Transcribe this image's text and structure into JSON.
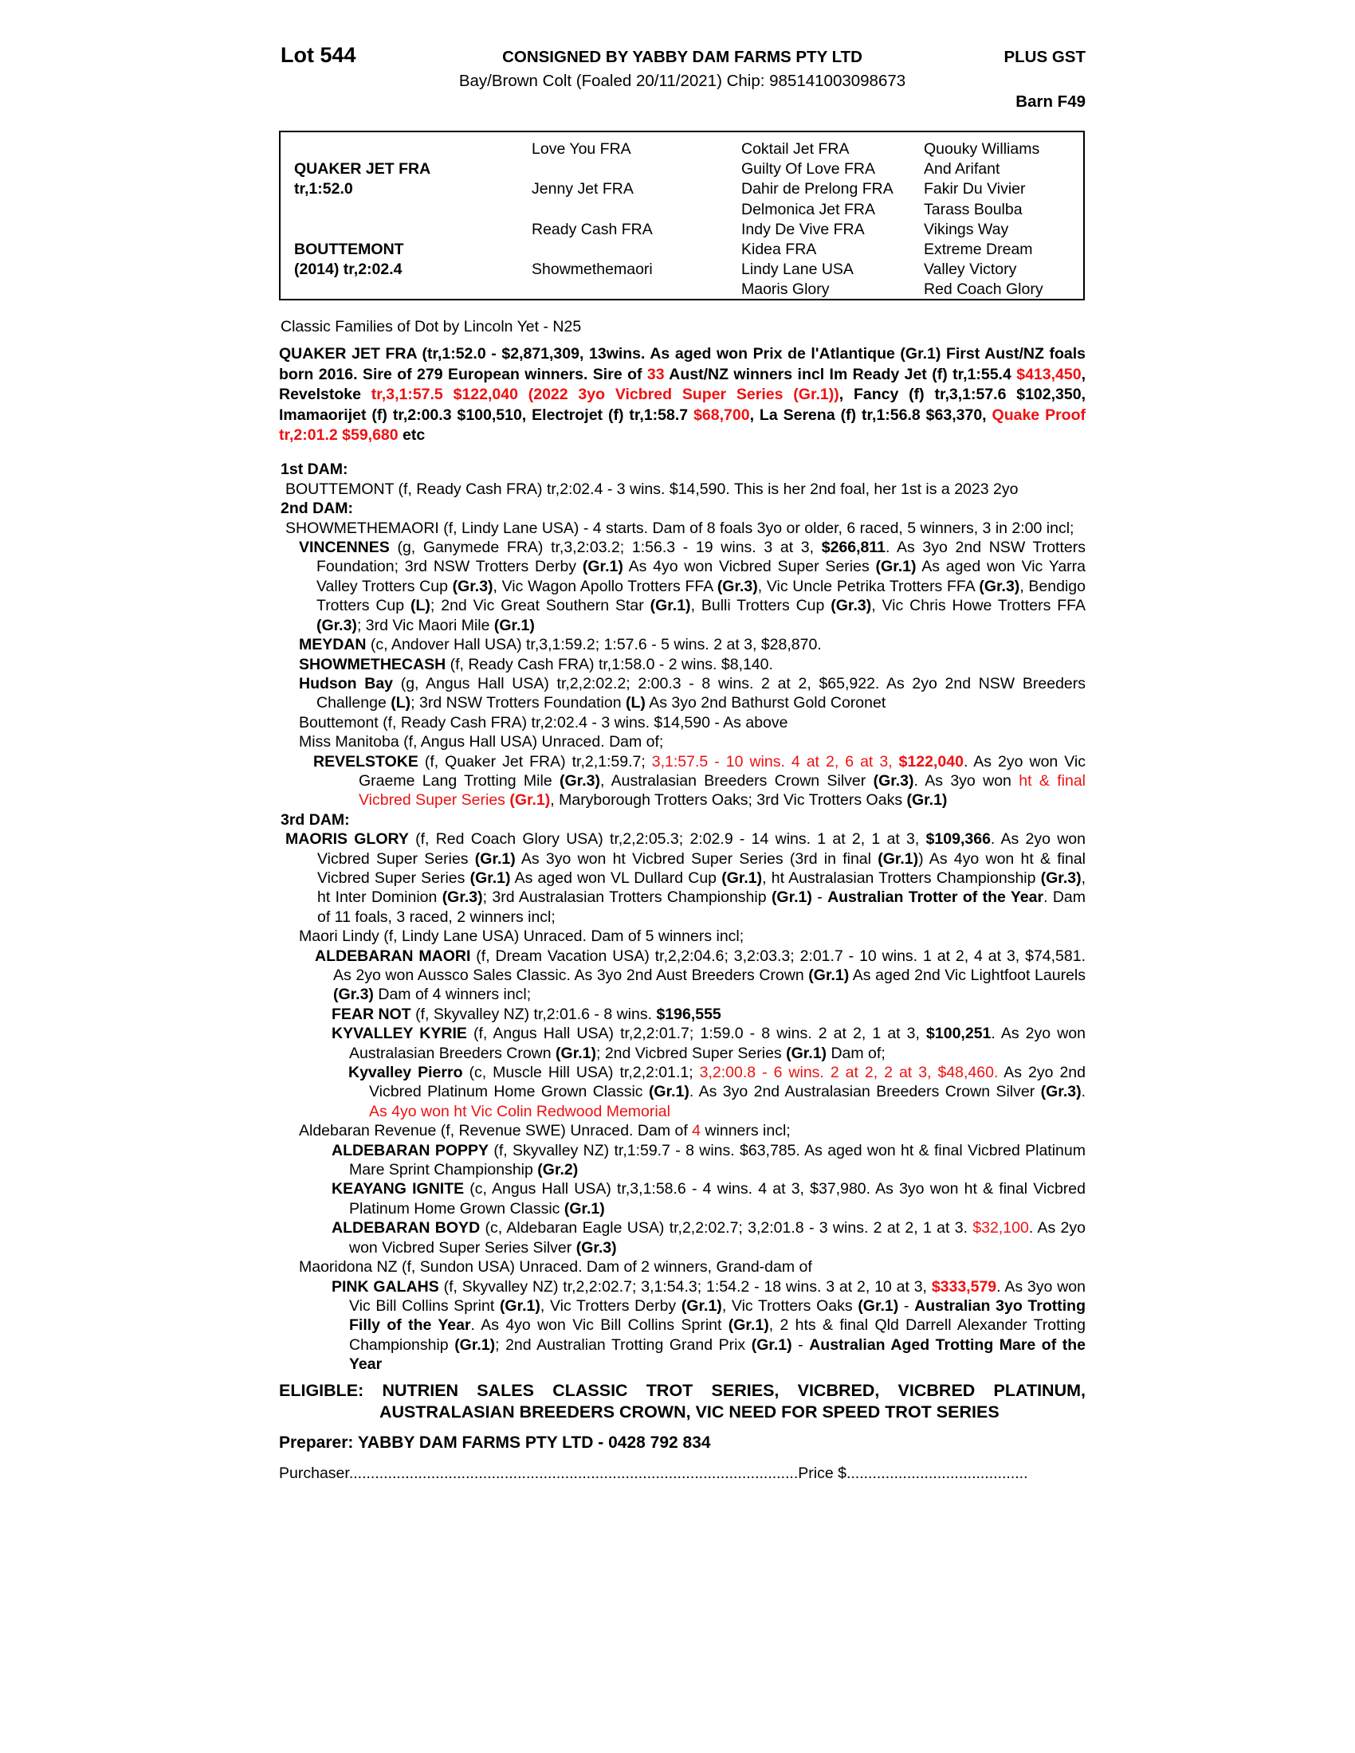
{
  "colors": {
    "red": "#ee1111"
  },
  "header": {
    "lot": "Lot 544",
    "consignor": "CONSIGNED BY YABBY DAM FARMS PTY LTD",
    "gst": "PLUS GST",
    "description": "Bay/Brown Colt (Foaled 20/11/2021) Chip: 985141003098673",
    "barn": "Barn F49"
  },
  "pedigree_table": {
    "rows": [
      {
        "c1": "",
        "c2": "Love You FRA",
        "c3": "Coktail Jet FRA",
        "c4": "Quouky Williams"
      },
      {
        "c1": "QUAKER JET FRA",
        "c2": "",
        "c3": "Guilty Of Love FRA",
        "c4": "And Arifant"
      },
      {
        "c1": "tr,1:52.0",
        "c2": "Jenny Jet FRA",
        "c3": "Dahir de Prelong FRA",
        "c4": "Fakir Du Vivier"
      },
      {
        "c1": "",
        "c2": "",
        "c3": "Delmonica Jet FRA",
        "c4": "Tarass Boulba"
      },
      {
        "c1": "",
        "c2": "Ready Cash FRA",
        "c3": "Indy De Vive FRA",
        "c4": "Vikings Way"
      },
      {
        "c1": "BOUTTEMONT",
        "c2": "",
        "c3": "Kidea FRA",
        "c4": "Extreme Dream"
      },
      {
        "c1": "(2014) tr,2:02.4",
        "c2": "Showmethemaori",
        "c3": "Lindy Lane USA",
        "c4": "Valley Victory"
      },
      {
        "c1": "",
        "c2": "",
        "c3": "Maoris Glory",
        "c4": "Red Coach Glory"
      }
    ]
  },
  "family_note": "Classic Families of Dot by Lincoln Yet - N25",
  "sire_paragraph": [
    {
      "t": "QUAKER JET FRA (tr,1:52.0 - $2,871,309, 13wins. As aged won Prix de l'Atlantique (Gr.1) First Aust/NZ foals born 2016. Sire of 279 European winners. Sire of ",
      "s": "b"
    },
    {
      "t": "33",
      "s": "br"
    },
    {
      "t": " Aust/NZ winners incl Im Ready Jet (f) tr,1:55.4 ",
      "s": "b"
    },
    {
      "t": "$413,450",
      "s": "br"
    },
    {
      "t": ", Revelstoke ",
      "s": "b"
    },
    {
      "t": "tr,3,1:57.5 $122,040 (2022 3yo Vicbred Super Series (Gr.1))",
      "s": "br"
    },
    {
      "t": ", Fancy (f) tr,3,1:57.6 $102,350, Imamaorijet (f) tr,2:00.3 $100,510, Electrojet (f) tr,1:58.7 ",
      "s": "b"
    },
    {
      "t": "$68,700",
      "s": "br"
    },
    {
      "t": ",  La Serena (f) tr,1:56.8 $63,370, ",
      "s": "b"
    },
    {
      "t": "Quake Proof tr,2:01.2 $59,680",
      "s": "br"
    },
    {
      "t": " etc",
      "s": "b"
    }
  ],
  "dam_blocks": [
    {
      "kind": "label",
      "text": "1st DAM:"
    },
    {
      "kind": "para",
      "indent": "0",
      "segs": [
        {
          "t": "BOUTTEMONT (f, Ready Cash FRA) tr,2:02.4 - 3 wins. $14,590. This is her 2nd foal, her 1st is a 2023 2yo",
          "s": ""
        }
      ]
    },
    {
      "kind": "label",
      "text": "2nd DAM:"
    },
    {
      "kind": "para",
      "indent": "0",
      "segs": [
        {
          "t": "SHOWMETHEMAORI (f, Lindy Lane USA) - 4 starts. Dam of 8 foals 3yo or older, 6 raced, 5 winners, 3 in 2:00 incl;",
          "s": ""
        }
      ]
    },
    {
      "kind": "para",
      "indent": "1",
      "segs": [
        {
          "t": "VINCENNES",
          "s": "b"
        },
        {
          "t": " (g, Ganymede FRA) tr,3,2:03.2; 1:56.3 - 19 wins. 3 at 3, ",
          "s": ""
        },
        {
          "t": "$266,811",
          "s": "b"
        },
        {
          "t": ". As 3yo 2nd NSW Trotters Foundation; 3rd NSW Trotters Derby ",
          "s": ""
        },
        {
          "t": "(Gr.1)",
          "s": "b"
        },
        {
          "t": " As 4yo won Vicbred Super Series ",
          "s": ""
        },
        {
          "t": "(Gr.1)",
          "s": "b"
        },
        {
          "t": " As aged won Vic Yarra Valley Trotters Cup ",
          "s": ""
        },
        {
          "t": "(Gr.3)",
          "s": "b"
        },
        {
          "t": ", Vic Wagon Apollo Trotters FFA ",
          "s": ""
        },
        {
          "t": "(Gr.3)",
          "s": "b"
        },
        {
          "t": ", Vic Uncle Petrika Trotters FFA ",
          "s": ""
        },
        {
          "t": "(Gr.3)",
          "s": "b"
        },
        {
          "t": ", Bendigo Trotters Cup ",
          "s": ""
        },
        {
          "t": "(L)",
          "s": "b"
        },
        {
          "t": "; 2nd Vic Great Southern Star ",
          "s": ""
        },
        {
          "t": "(Gr.1)",
          "s": "b"
        },
        {
          "t": ", Bulli Trotters Cup ",
          "s": ""
        },
        {
          "t": "(Gr.3)",
          "s": "b"
        },
        {
          "t": ", Vic Chris Howe Trotters FFA ",
          "s": ""
        },
        {
          "t": "(Gr.3)",
          "s": "b"
        },
        {
          "t": "; 3rd Vic Maori Mile ",
          "s": ""
        },
        {
          "t": "(Gr.1)",
          "s": "b"
        }
      ]
    },
    {
      "kind": "para",
      "indent": "1",
      "segs": [
        {
          "t": "MEYDAN",
          "s": "b"
        },
        {
          "t": " (c, Andover Hall USA) tr,3,1:59.2; 1:57.6 - 5 wins. 2 at 3, $28,870.",
          "s": ""
        }
      ]
    },
    {
      "kind": "para",
      "indent": "1",
      "segs": [
        {
          "t": "SHOWMETHECASH",
          "s": "b"
        },
        {
          "t": " (f, Ready Cash FRA) tr,1:58.0 - 2 wins. $8,140.",
          "s": ""
        }
      ]
    },
    {
      "kind": "para",
      "indent": "1",
      "segs": [
        {
          "t": "Hudson Bay",
          "s": "b"
        },
        {
          "t": " (g, Angus Hall USA) tr,2,2:02.2; 2:00.3 - 8 wins. 2 at 2, $65,922. As 2yo 2nd NSW Breeders Challenge ",
          "s": ""
        },
        {
          "t": "(L)",
          "s": "b"
        },
        {
          "t": "; 3rd NSW Trotters Foundation ",
          "s": ""
        },
        {
          "t": "(L)",
          "s": "b"
        },
        {
          "t": " As 3yo 2nd Bathurst Gold Coronet",
          "s": ""
        }
      ]
    },
    {
      "kind": "para",
      "indent": "1",
      "segs": [
        {
          "t": "Bouttemont (f, Ready Cash FRA) tr,2:02.4 - 3 wins. $14,590 - As above",
          "s": ""
        }
      ]
    },
    {
      "kind": "para",
      "indent": "1",
      "segs": [
        {
          "t": "Miss Manitoba (f, Angus Hall USA) Unraced. Dam of;",
          "s": ""
        }
      ]
    },
    {
      "kind": "para",
      "indent": "2r",
      "segs": [
        {
          "t": "REVELSTOKE",
          "s": "b"
        },
        {
          "t": " (f, Quaker Jet FRA) tr,2,1:59.7; ",
          "s": ""
        },
        {
          "t": "3,1:57.5 - 10 wins. 4 at 2, 6 at 3, ",
          "s": "r"
        },
        {
          "t": "$122,040",
          "s": "br"
        },
        {
          "t": ". As 2yo won Vic Graeme Lang Trotting Mile ",
          "s": ""
        },
        {
          "t": "(Gr.3)",
          "s": "b"
        },
        {
          "t": ", Australasian Breeders Crown Silver ",
          "s": ""
        },
        {
          "t": "(Gr.3)",
          "s": "b"
        },
        {
          "t": ". As 3yo won ",
          "s": ""
        },
        {
          "t": "ht & final Vicbred Super Series ",
          "s": "r"
        },
        {
          "t": "(Gr.1)",
          "s": "br"
        },
        {
          "t": ", Maryborough Trotters Oaks; 3rd Vic Trotters Oaks ",
          "s": ""
        },
        {
          "t": "(Gr.1)",
          "s": "b"
        }
      ]
    },
    {
      "kind": "label",
      "text": "3rd DAM:"
    },
    {
      "kind": "para",
      "indent": "0",
      "segs": [
        {
          "t": "MAORIS GLORY",
          "s": "b"
        },
        {
          "t": " (f, Red Coach Glory USA) tr,2,2:05.3; 2:02.9 - 14 wins. 1 at 2, 1 at 3, ",
          "s": ""
        },
        {
          "t": "$109,366",
          "s": "b"
        },
        {
          "t": ". As 2yo won Vicbred Super Series ",
          "s": ""
        },
        {
          "t": "(Gr.1)",
          "s": "b"
        },
        {
          "t": " As 3yo won ht Vicbred Super Series (3rd in final ",
          "s": ""
        },
        {
          "t": "(Gr.1)",
          "s": "b"
        },
        {
          "t": ") As 4yo won ht & final Vicbred Super Series ",
          "s": ""
        },
        {
          "t": "(Gr.1)",
          "s": "b"
        },
        {
          "t": " As aged won VL Dullard Cup ",
          "s": ""
        },
        {
          "t": "(Gr.1)",
          "s": "b"
        },
        {
          "t": ", ht Australasian Trotters Championship ",
          "s": ""
        },
        {
          "t": "(Gr.3)",
          "s": "b"
        },
        {
          "t": ", ht Inter Dominion ",
          "s": ""
        },
        {
          "t": "(Gr.3)",
          "s": "b"
        },
        {
          "t": "; 3rd Australasian Trotters Championship ",
          "s": ""
        },
        {
          "t": "(Gr.1)",
          "s": "b"
        },
        {
          "t": " - ",
          "s": ""
        },
        {
          "t": "Australian Trotter of the Year",
          "s": "b"
        },
        {
          "t": ". Dam of 11 foals, 3 raced, 2 winners incl;",
          "s": ""
        }
      ]
    },
    {
      "kind": "para",
      "indent": "1",
      "segs": [
        {
          "t": "Maori Lindy (f, Lindy Lane USA) Unraced. Dam of 5 winners incl;",
          "s": ""
        }
      ]
    },
    {
      "kind": "para",
      "indent": "2",
      "segs": [
        {
          "t": "ALDEBARAN MAORI",
          "s": "b"
        },
        {
          "t": " (f, Dream Vacation USA) tr,2,2:04.6; 3,2:03.3; 2:01.7 - 10 wins. 1 at 2, 4 at 3, $74,581. As 2yo won Aussco Sales Classic. As 3yo 2nd Aust Breeders Crown ",
          "s": ""
        },
        {
          "t": "(Gr.1)",
          "s": "b"
        },
        {
          "t": " As aged 2nd Vic Lightfoot Laurels ",
          "s": ""
        },
        {
          "t": "(Gr.3)",
          "s": "b"
        },
        {
          "t": " Dam of 4 winners incl;",
          "s": ""
        }
      ]
    },
    {
      "kind": "para",
      "indent": "3",
      "segs": [
        {
          "t": "FEAR NOT",
          "s": "b"
        },
        {
          "t": " (f, Skyvalley NZ) tr,2:01.6 - 8 wins. ",
          "s": ""
        },
        {
          "t": "$196,555",
          "s": "b"
        }
      ]
    },
    {
      "kind": "para",
      "indent": "3",
      "segs": [
        {
          "t": "KYVALLEY KYRIE",
          "s": "b"
        },
        {
          "t": " (f, Angus Hall USA) tr,2,2:01.7; 1:59.0 - 8 wins. 2 at 2, 1 at 3, ",
          "s": ""
        },
        {
          "t": "$100,251",
          "s": "b"
        },
        {
          "t": ". As 2yo won Australasian Breeders Crown ",
          "s": ""
        },
        {
          "t": "(Gr.1)",
          "s": "b"
        },
        {
          "t": "; 2nd Vicbred Super Series ",
          "s": ""
        },
        {
          "t": "(Gr.1)",
          "s": "b"
        },
        {
          "t": " Dam of;",
          "s": ""
        }
      ]
    },
    {
      "kind": "para",
      "indent": "4",
      "segs": [
        {
          "t": "Kyvalley Pierro",
          "s": "b"
        },
        {
          "t": " (c, Muscle Hill USA) tr,2,2:01.1; ",
          "s": ""
        },
        {
          "t": "3,2:00.8 - 6 wins. 2 at 2, 2 at 3, $48,460.",
          "s": "r"
        },
        {
          "t": " As 2yo 2nd Vicbred Platinum Home Grown Classic ",
          "s": ""
        },
        {
          "t": "(Gr.1)",
          "s": "b"
        },
        {
          "t": ". As 3yo 2nd Australasian Breeders Crown Silver ",
          "s": ""
        },
        {
          "t": "(Gr.3)",
          "s": "b"
        },
        {
          "t": ". ",
          "s": ""
        },
        {
          "t": "As 4yo won ht Vic Colin Redwood Memorial",
          "s": "r"
        }
      ]
    },
    {
      "kind": "para",
      "indent": "1",
      "segs": [
        {
          "t": "Aldebaran Revenue (f, Revenue SWE) Unraced. Dam of ",
          "s": ""
        },
        {
          "t": "4",
          "s": "r"
        },
        {
          "t": " winners incl;",
          "s": ""
        }
      ]
    },
    {
      "kind": "para",
      "indent": "3",
      "segs": [
        {
          "t": "ALDEBARAN POPPY",
          "s": "b"
        },
        {
          "t": " (f, Skyvalley NZ) tr,1:59.7 - 8 wins. $63,785. As aged won ht & final Vicbred Platinum Mare Sprint Championship ",
          "s": ""
        },
        {
          "t": "(Gr.2)",
          "s": "b"
        }
      ]
    },
    {
      "kind": "para",
      "indent": "3",
      "segs": [
        {
          "t": "KEAYANG IGNITE",
          "s": "b"
        },
        {
          "t": " (c, Angus Hall USA) tr,3,1:58.6 - 4 wins. 4 at 3, $37,980. As 3yo won ht & final Vicbred Platinum Home Grown Classic ",
          "s": ""
        },
        {
          "t": "(Gr.1)",
          "s": "b"
        }
      ]
    },
    {
      "kind": "para",
      "indent": "3",
      "segs": [
        {
          "t": "ALDEBARAN BOYD",
          "s": "b"
        },
        {
          "t": " (c, Aldebaran Eagle USA) tr,2,2:02.7; 3,2:01.8 - 3 wins. 2 at 2, 1 at 3. ",
          "s": ""
        },
        {
          "t": "$32,100",
          "s": "r"
        },
        {
          "t": ". As 2yo won Vicbred Super Series Silver ",
          "s": ""
        },
        {
          "t": "(Gr.3)",
          "s": "b"
        }
      ]
    },
    {
      "kind": "para",
      "indent": "1",
      "segs": [
        {
          "t": "Maoridona NZ (f, Sundon USA) Unraced. Dam of 2 winners, Grand-dam of",
          "s": ""
        }
      ]
    },
    {
      "kind": "para",
      "indent": "3",
      "segs": [
        {
          "t": "PINK GALAHS",
          "s": "b"
        },
        {
          "t": " (f, Skyvalley NZ) tr,2,2:02.7; 3,1:54.3; 1:54.2 - 18 wins. 3 at 2, 10 at 3, ",
          "s": ""
        },
        {
          "t": "$333,579",
          "s": "br"
        },
        {
          "t": ". As 3yo won Vic Bill Collins Sprint ",
          "s": ""
        },
        {
          "t": "(Gr.1)",
          "s": "b"
        },
        {
          "t": ", Vic Trotters Derby ",
          "s": ""
        },
        {
          "t": "(Gr.1)",
          "s": "b"
        },
        {
          "t": ", Vic Trotters Oaks ",
          "s": ""
        },
        {
          "t": "(Gr.1)",
          "s": "b"
        },
        {
          "t": " - ",
          "s": ""
        },
        {
          "t": "Australian 3yo Trotting Filly of the Year",
          "s": "b"
        },
        {
          "t": ". As 4yo won Vic Bill Collins Sprint ",
          "s": ""
        },
        {
          "t": "(Gr.1)",
          "s": "b"
        },
        {
          "t": ", 2 hts & final Qld Darrell Alexander Trotting Championship ",
          "s": ""
        },
        {
          "t": "(Gr.1)",
          "s": "b"
        },
        {
          "t": "; 2nd Australian Trotting Grand Prix ",
          "s": ""
        },
        {
          "t": "(Gr.1)",
          "s": "b"
        },
        {
          "t": " - ",
          "s": ""
        },
        {
          "t": "Australian Aged Trotting Mare of the Year",
          "s": "b"
        }
      ]
    }
  ],
  "eligible_paragraph": [
    {
      "t": "ELIGIBLE: ",
      "s": "b"
    },
    {
      "t": "NUTRIEN SALES CLASSIC TROT SERIES, VICBRED, VICBRED PLATINUM, AUSTRALASIAN BREEDERS CROWN, VIC NEED FOR SPEED TROT SERIES",
      "s": "b"
    }
  ],
  "preparer": "Preparer: YABBY DAM FARMS PTY LTD - 0428 792 834",
  "purchaser": {
    "label": "Purchaser",
    "dots1": "........................................................................................................",
    "price_label": "Price $",
    "dots2": ".........................................."
  }
}
